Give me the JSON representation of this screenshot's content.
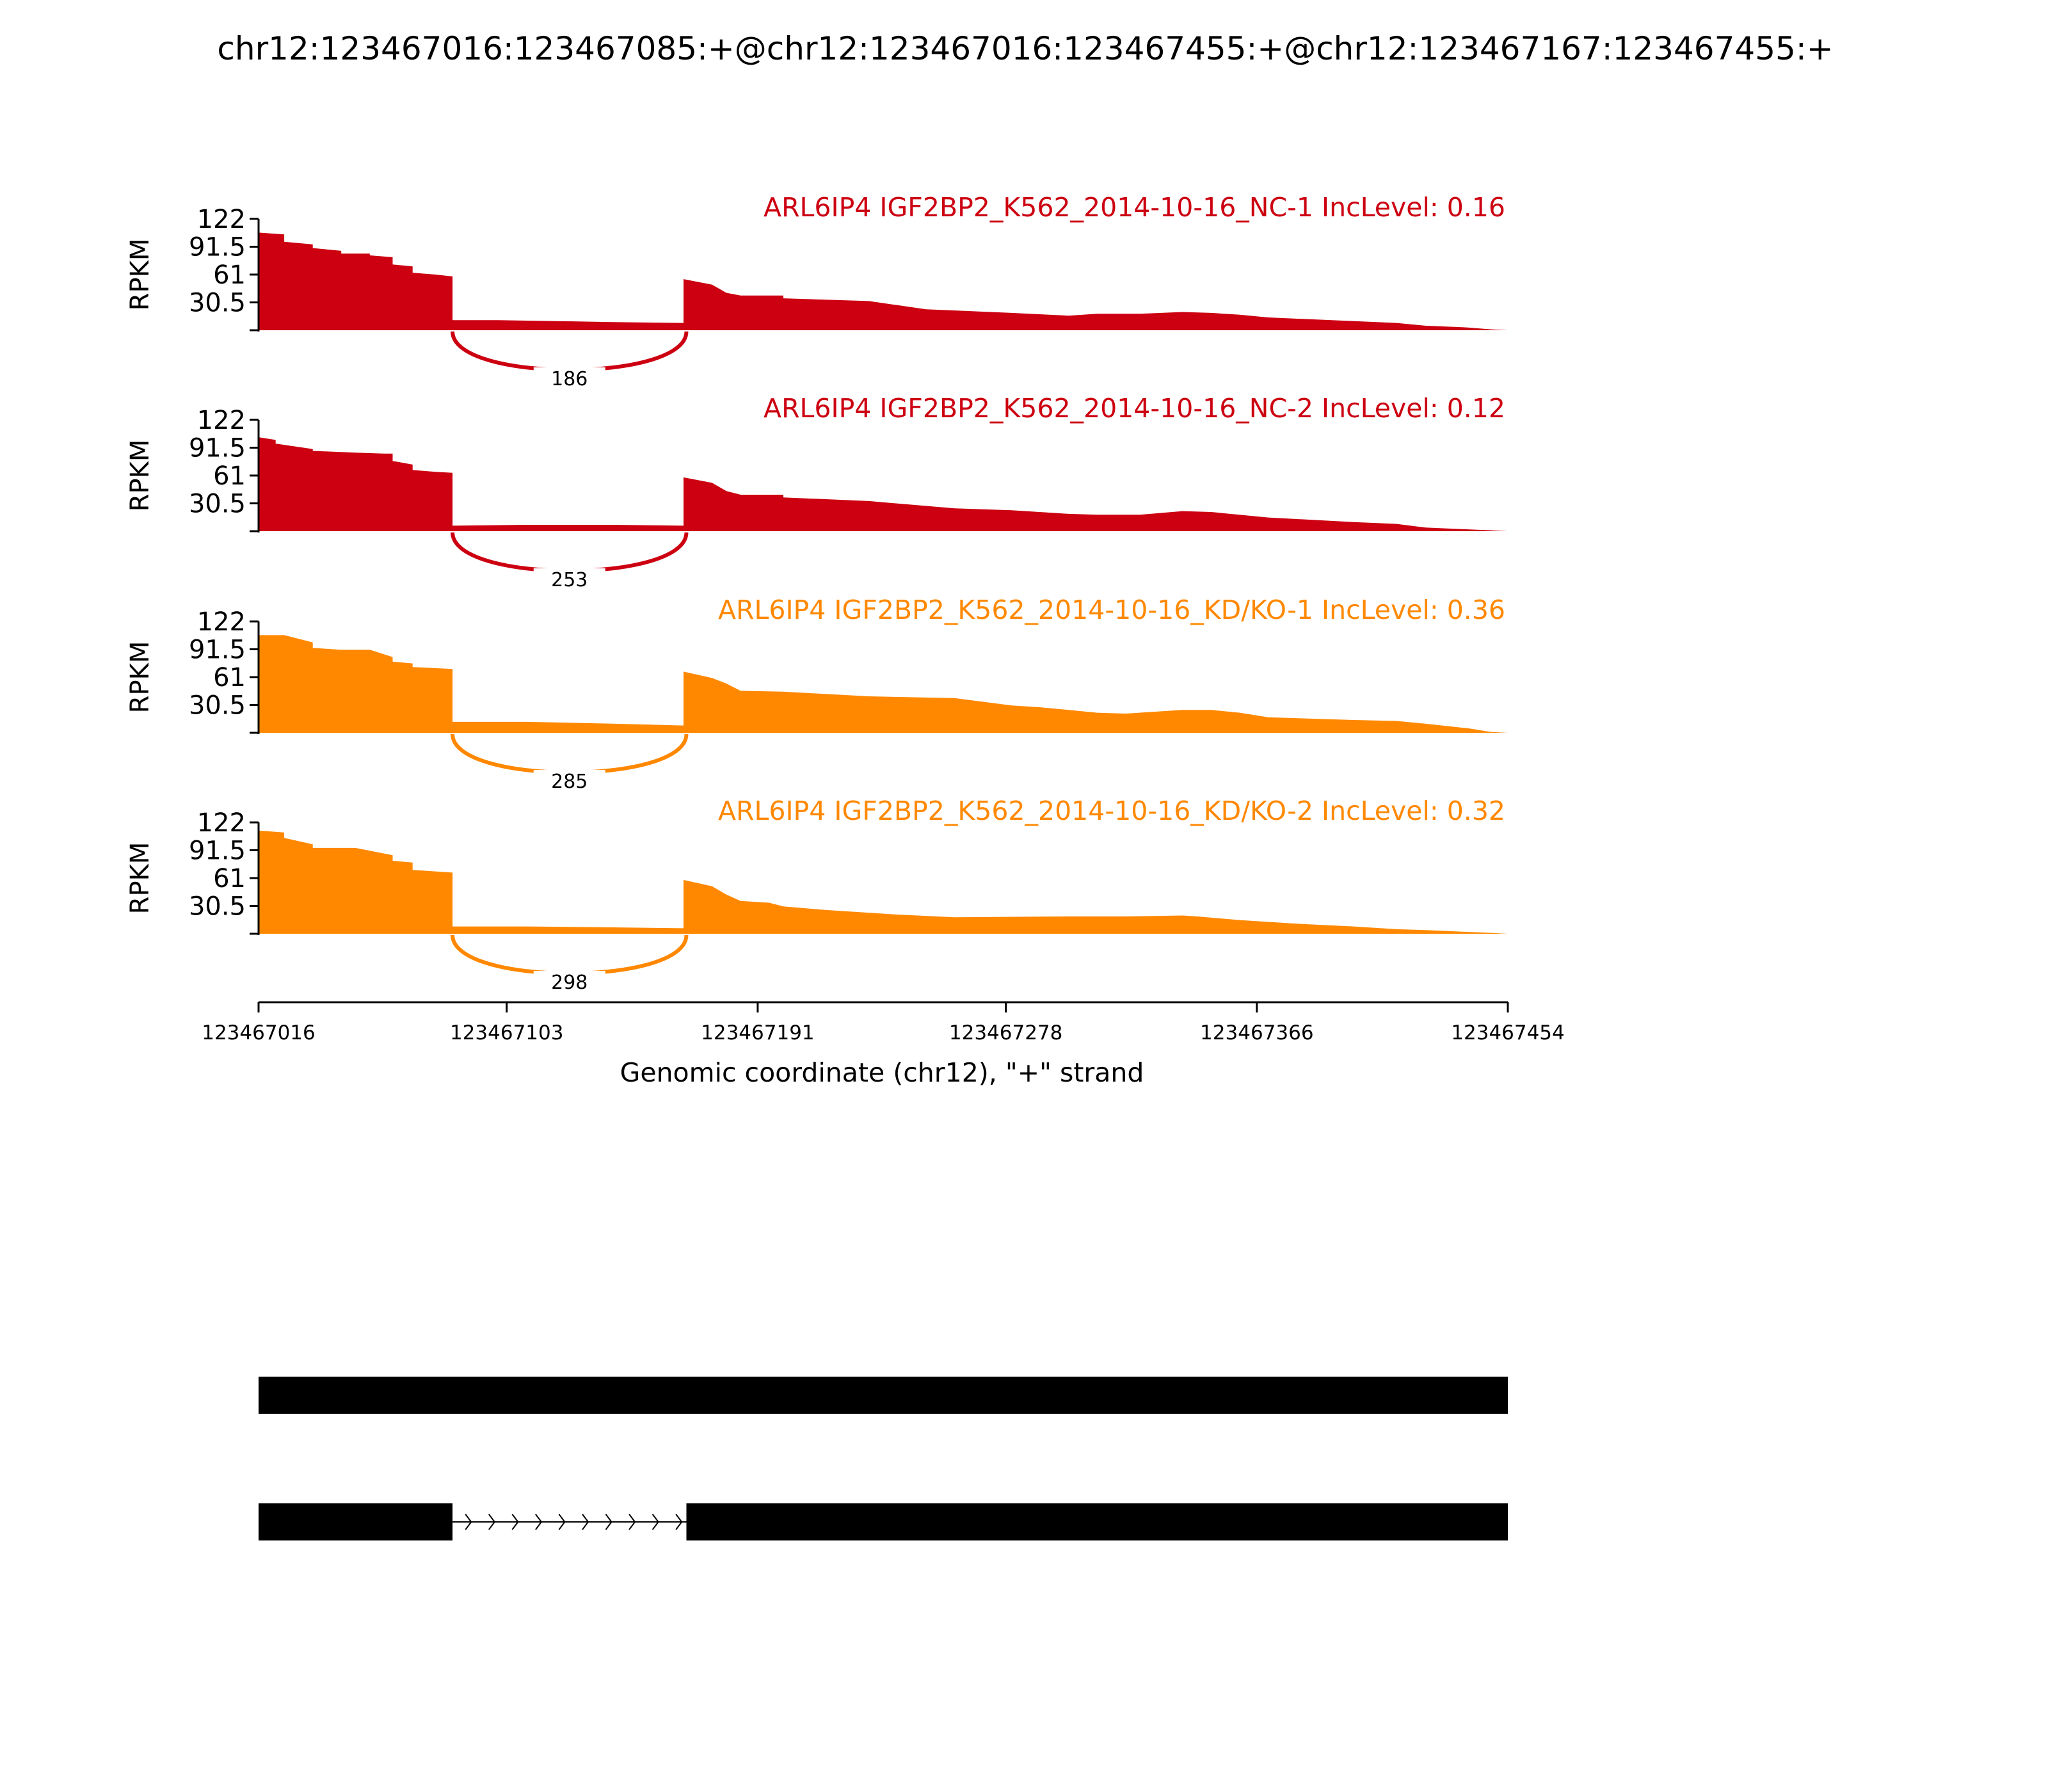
{
  "title": "chr12:123467016:123467085:+@chr12:123467016:123467455:+@chr12:123467167:123467455:+",
  "chart_data": {
    "type": "area",
    "title": "chr12:123467016:123467085:+@chr12:123467016:123467455:+@chr12:123467167:123467455:+",
    "xlabel": "Genomic coordinate (chr12), \"+\" strand",
    "ylabel": "RPKM",
    "xlim": [
      123467016,
      123467454
    ],
    "ylim": [
      0,
      122
    ],
    "yticks": [
      30.5,
      61,
      91.5,
      122
    ],
    "ytick_labels": [
      "30.5",
      "61",
      "91.5",
      "122"
    ],
    "xticks": [
      123467016,
      123467103,
      123467191,
      123467278,
      123467366,
      123467454
    ],
    "xtick_labels": [
      "123467016",
      "123467103",
      "123467191",
      "123467278",
      "123467366",
      "123467454"
    ],
    "colors": {
      "NC": "#cc0011",
      "KD": "#ff8800"
    },
    "panels": [
      {
        "label": "ARL6IP4 IGF2BP2_K562_2014-10-16_NC-1 IncLevel: 0.16",
        "color": "#cc0011",
        "junction": {
          "from": 123467084,
          "to": 123467166,
          "count": "186"
        },
        "coverage": [
          [
            123467016,
            107
          ],
          [
            123467025,
            105
          ],
          [
            123467025,
            97
          ],
          [
            123467035,
            94
          ],
          [
            123467035,
            90
          ],
          [
            123467045,
            87
          ],
          [
            123467045,
            84
          ],
          [
            123467055,
            84
          ],
          [
            123467055,
            82
          ],
          [
            123467063,
            80
          ],
          [
            123467063,
            72
          ],
          [
            123467070,
            70
          ],
          [
            123467070,
            63
          ],
          [
            123467078,
            61
          ],
          [
            123467084,
            59
          ],
          [
            123467084,
            11
          ],
          [
            123467100,
            11
          ],
          [
            123467120,
            10
          ],
          [
            123467140,
            9
          ],
          [
            123467165,
            8
          ],
          [
            123467165,
            56
          ],
          [
            123467175,
            50
          ],
          [
            123467180,
            41
          ],
          [
            123467185,
            38
          ],
          [
            123467200,
            38
          ],
          [
            123467200,
            35
          ],
          [
            123467230,
            32
          ],
          [
            123467250,
            23
          ],
          [
            123467280,
            19
          ],
          [
            123467300,
            16
          ],
          [
            123467310,
            18
          ],
          [
            123467325,
            18
          ],
          [
            123467340,
            20
          ],
          [
            123467350,
            19
          ],
          [
            123467360,
            17
          ],
          [
            123467370,
            14
          ],
          [
            123467400,
            10
          ],
          [
            123467415,
            8
          ],
          [
            123467425,
            5
          ],
          [
            123467440,
            3
          ],
          [
            123467448,
            1
          ],
          [
            123467454,
            0
          ]
        ]
      },
      {
        "label": "ARL6IP4 IGF2BP2_K562_2014-10-16_NC-2 IncLevel: 0.12",
        "color": "#cc0011",
        "junction": {
          "from": 123467084,
          "to": 123467166,
          "count": "253"
        },
        "coverage": [
          [
            123467016,
            103
          ],
          [
            123467022,
            100
          ],
          [
            123467022,
            96
          ],
          [
            123467035,
            90
          ],
          [
            123467035,
            88
          ],
          [
            123467050,
            86
          ],
          [
            123467060,
            85
          ],
          [
            123467063,
            85
          ],
          [
            123467063,
            77
          ],
          [
            123467070,
            73
          ],
          [
            123467070,
            67
          ],
          [
            123467078,
            65
          ],
          [
            123467084,
            64
          ],
          [
            123467084,
            6
          ],
          [
            123467110,
            7
          ],
          [
            123467140,
            7
          ],
          [
            123467165,
            6
          ],
          [
            123467165,
            59
          ],
          [
            123467175,
            53
          ],
          [
            123467180,
            44
          ],
          [
            123467185,
            40
          ],
          [
            123467200,
            40
          ],
          [
            123467200,
            37
          ],
          [
            123467230,
            33
          ],
          [
            123467260,
            25
          ],
          [
            123467280,
            23
          ],
          [
            123467300,
            19
          ],
          [
            123467310,
            18
          ],
          [
            123467325,
            18
          ],
          [
            123467340,
            22
          ],
          [
            123467350,
            21
          ],
          [
            123467370,
            15
          ],
          [
            123467400,
            10
          ],
          [
            123467415,
            8
          ],
          [
            123467425,
            4
          ],
          [
            123467440,
            2
          ],
          [
            123467448,
            1
          ],
          [
            123467454,
            0
          ]
        ]
      },
      {
        "label": "ARL6IP4 IGF2BP2_K562_2014-10-16_KD/KO-1 IncLevel: 0.36",
        "color": "#ff8800",
        "junction": {
          "from": 123467084,
          "to": 123467166,
          "count": "285"
        },
        "coverage": [
          [
            123467016,
            107
          ],
          [
            123467025,
            107
          ],
          [
            123467035,
            99
          ],
          [
            123467035,
            93
          ],
          [
            123467045,
            91
          ],
          [
            123467055,
            91
          ],
          [
            123467063,
            83
          ],
          [
            123467063,
            78
          ],
          [
            123467070,
            76
          ],
          [
            123467070,
            72
          ],
          [
            123467084,
            70
          ],
          [
            123467084,
            12
          ],
          [
            123467110,
            12
          ],
          [
            123467140,
            10
          ],
          [
            123467165,
            8
          ],
          [
            123467165,
            67
          ],
          [
            123467175,
            60
          ],
          [
            123467180,
            54
          ],
          [
            123467185,
            46
          ],
          [
            123467200,
            45
          ],
          [
            123467230,
            40
          ],
          [
            123467260,
            38
          ],
          [
            123467270,
            34
          ],
          [
            123467280,
            30
          ],
          [
            123467290,
            28
          ],
          [
            123467300,
            25
          ],
          [
            123467310,
            22
          ],
          [
            123467320,
            21
          ],
          [
            123467340,
            25
          ],
          [
            123467350,
            25
          ],
          [
            123467360,
            22
          ],
          [
            123467370,
            17
          ],
          [
            123467400,
            14
          ],
          [
            123467415,
            13
          ],
          [
            123467425,
            10
          ],
          [
            123467440,
            5
          ],
          [
            123467448,
            1
          ],
          [
            123467454,
            0
          ]
        ]
      },
      {
        "label": "ARL6IP4 IGF2BP2_K562_2014-10-16_KD/KO-2 IncLevel: 0.32",
        "color": "#ff8800",
        "junction": {
          "from": 123467084,
          "to": 123467166,
          "count": "298"
        },
        "coverage": [
          [
            123467016,
            113
          ],
          [
            123467025,
            111
          ],
          [
            123467025,
            105
          ],
          [
            123467035,
            98
          ],
          [
            123467035,
            94
          ],
          [
            123467050,
            94
          ],
          [
            123467063,
            86
          ],
          [
            123467063,
            80
          ],
          [
            123467070,
            78
          ],
          [
            123467070,
            70
          ],
          [
            123467084,
            67
          ],
          [
            123467084,
            8
          ],
          [
            123467110,
            8
          ],
          [
            123467140,
            7
          ],
          [
            123467165,
            6
          ],
          [
            123467165,
            59
          ],
          [
            123467175,
            52
          ],
          [
            123467180,
            43
          ],
          [
            123467185,
            36
          ],
          [
            123467195,
            34
          ],
          [
            123467200,
            30
          ],
          [
            123467215,
            26
          ],
          [
            123467240,
            21
          ],
          [
            123467260,
            18
          ],
          [
            123467300,
            19
          ],
          [
            123467320,
            19
          ],
          [
            123467340,
            20
          ],
          [
            123467345,
            19
          ],
          [
            123467360,
            15
          ],
          [
            123467380,
            11
          ],
          [
            123467400,
            8
          ],
          [
            123467415,
            5
          ],
          [
            123467425,
            4
          ],
          [
            123467440,
            2
          ],
          [
            123467448,
            1
          ],
          [
            123467454,
            0
          ]
        ]
      }
    ],
    "isoforms": [
      {
        "exons": [
          [
            123467016,
            123467454
          ]
        ]
      },
      {
        "exons": [
          [
            123467016,
            123467084
          ],
          [
            123467166,
            123467454
          ]
        ]
      }
    ]
  }
}
